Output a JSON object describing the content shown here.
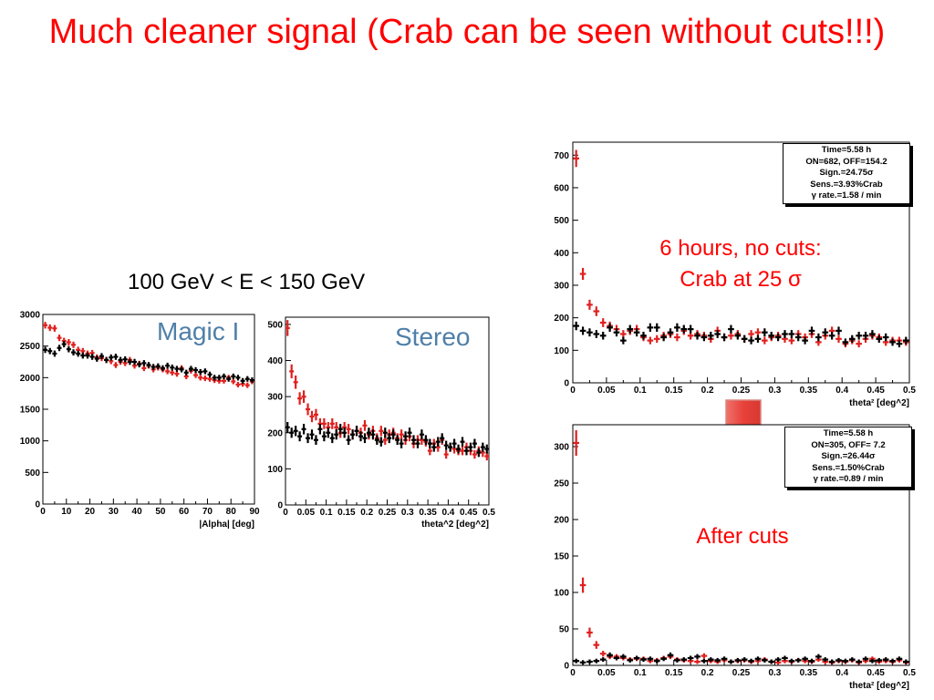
{
  "slide_title": "Much cleaner signal (Crab can be seen without cuts!!!)",
  "energy_label": "100 GeV < E < 150 GeV",
  "notes": {
    "nocuts_line1": "6 hours, no cuts:",
    "nocuts_line2": "Crab at 25 σ",
    "after_cuts": "After cuts"
  },
  "colors": {
    "on": "#e0201e",
    "off": "#000000",
    "title": "#ff0000",
    "label": "#4f7fa8",
    "arrow": "#e8413a"
  },
  "chart_data": [
    {
      "id": "alpha",
      "type": "scatter",
      "panel_label": "Magic I",
      "xlabel": "|Alpha| [deg]",
      "xlim": [
        0,
        90
      ],
      "ylim": [
        0,
        3000
      ],
      "xticks": [
        0,
        10,
        20,
        30,
        40,
        50,
        60,
        70,
        80,
        90
      ],
      "xtick_labels": [
        "0",
        "10",
        "20",
        "30",
        "40",
        "50",
        "60",
        "70",
        "80",
        "90"
      ],
      "yticks": [
        0,
        500,
        1000,
        1500,
        2000,
        2500,
        3000
      ],
      "ytick_labels": [
        "0",
        "500",
        "1000",
        "1500",
        "2000",
        "2500",
        "3000"
      ],
      "series": [
        {
          "role": "on",
          "x": [
            1,
            3,
            5,
            7,
            9,
            11,
            13,
            15,
            17,
            19,
            21,
            23,
            25,
            27,
            29,
            31,
            33,
            35,
            37,
            39,
            41,
            43,
            45,
            47,
            49,
            51,
            53,
            55,
            57,
            59,
            61,
            63,
            65,
            67,
            69,
            71,
            73,
            75,
            77,
            79,
            81,
            83,
            85,
            87,
            89
          ],
          "values": [
            2830,
            2790,
            2780,
            2630,
            2580,
            2560,
            2520,
            2440,
            2420,
            2380,
            2390,
            2320,
            2310,
            2280,
            2260,
            2200,
            2250,
            2230,
            2280,
            2190,
            2220,
            2150,
            2190,
            2130,
            2160,
            2130,
            2100,
            2080,
            2060,
            2150,
            2020,
            2110,
            2040,
            2000,
            1990,
            1980,
            1960,
            1950,
            1950,
            2000,
            1940,
            1890,
            1900,
            1880,
            1940
          ]
        },
        {
          "role": "off",
          "x": [
            1,
            3,
            5,
            7,
            9,
            11,
            13,
            15,
            17,
            19,
            21,
            23,
            25,
            27,
            29,
            31,
            33,
            35,
            37,
            39,
            41,
            43,
            45,
            47,
            49,
            51,
            53,
            55,
            57,
            59,
            61,
            63,
            65,
            67,
            69,
            71,
            73,
            75,
            77,
            79,
            81,
            83,
            85,
            87,
            89
          ],
          "values": [
            2440,
            2420,
            2380,
            2470,
            2530,
            2450,
            2400,
            2380,
            2350,
            2350,
            2330,
            2300,
            2340,
            2280,
            2320,
            2330,
            2280,
            2290,
            2250,
            2250,
            2210,
            2230,
            2200,
            2170,
            2180,
            2150,
            2190,
            2160,
            2140,
            2130,
            2080,
            2140,
            2120,
            2090,
            2100,
            2050,
            2000,
            2000,
            2020,
            1980,
            2020,
            2000,
            1950,
            1980,
            1960
          ]
        }
      ]
    },
    {
      "id": "stereo",
      "type": "scatter",
      "panel_label": "Stereo",
      "xlabel": "theta^2 [deg^2]",
      "xlim": [
        0,
        0.5
      ],
      "ylim": [
        0,
        520
      ],
      "xticks": [
        0,
        0.05,
        0.1,
        0.15,
        0.2,
        0.25,
        0.3,
        0.35,
        0.4,
        0.45,
        0.5
      ],
      "xtick_labels": [
        "0",
        "0.05",
        "0.1",
        "0.15",
        "0.2",
        "0.25",
        "0.3",
        "0.35",
        "0.4",
        "0.45",
        "0.5"
      ],
      "yticks": [
        0,
        100,
        200,
        300,
        400,
        500
      ],
      "ytick_labels": [
        "0",
        "100",
        "200",
        "300",
        "400",
        "500"
      ],
      "series": [
        {
          "role": "on",
          "x": [
            0.005,
            0.015,
            0.025,
            0.035,
            0.045,
            0.055,
            0.065,
            0.075,
            0.085,
            0.095,
            0.105,
            0.115,
            0.125,
            0.135,
            0.145,
            0.155,
            0.165,
            0.175,
            0.185,
            0.195,
            0.205,
            0.215,
            0.225,
            0.235,
            0.245,
            0.255,
            0.265,
            0.275,
            0.285,
            0.295,
            0.305,
            0.315,
            0.325,
            0.335,
            0.345,
            0.355,
            0.365,
            0.375,
            0.385,
            0.395,
            0.405,
            0.415,
            0.425,
            0.435,
            0.445,
            0.455,
            0.465,
            0.475,
            0.485,
            0.495
          ],
          "values": [
            490,
            370,
            340,
            295,
            300,
            265,
            245,
            250,
            225,
            225,
            215,
            225,
            215,
            200,
            215,
            210,
            195,
            205,
            200,
            220,
            195,
            205,
            185,
            205,
            180,
            195,
            200,
            185,
            195,
            180,
            190,
            170,
            180,
            180,
            175,
            150,
            170,
            160,
            180,
            140,
            160,
            155,
            150,
            150,
            160,
            150,
            140,
            150,
            145,
            135
          ]
        },
        {
          "role": "off",
          "x": [
            0.005,
            0.015,
            0.025,
            0.035,
            0.045,
            0.055,
            0.065,
            0.075,
            0.085,
            0.095,
            0.105,
            0.115,
            0.125,
            0.135,
            0.145,
            0.155,
            0.165,
            0.175,
            0.185,
            0.195,
            0.205,
            0.215,
            0.225,
            0.235,
            0.245,
            0.255,
            0.265,
            0.275,
            0.285,
            0.295,
            0.305,
            0.315,
            0.325,
            0.335,
            0.345,
            0.355,
            0.365,
            0.375,
            0.385,
            0.395,
            0.405,
            0.415,
            0.425,
            0.435,
            0.445,
            0.455,
            0.465,
            0.475,
            0.485,
            0.495
          ],
          "values": [
            215,
            200,
            205,
            190,
            210,
            185,
            195,
            180,
            210,
            190,
            200,
            185,
            195,
            210,
            200,
            180,
            195,
            205,
            190,
            185,
            200,
            195,
            180,
            175,
            200,
            185,
            195,
            180,
            170,
            190,
            200,
            180,
            170,
            195,
            180,
            170,
            160,
            175,
            185,
            165,
            160,
            170,
            155,
            175,
            150,
            160,
            170,
            145,
            160,
            155
          ]
        }
      ]
    },
    {
      "id": "nocuts",
      "type": "scatter",
      "xlabel": "theta² [deg^2]",
      "xlim": [
        0,
        0.5
      ],
      "ylim": [
        0,
        740
      ],
      "xticks": [
        0,
        0.05,
        0.1,
        0.15,
        0.2,
        0.25,
        0.3,
        0.35,
        0.4,
        0.45,
        0.5
      ],
      "xtick_labels": [
        "0",
        "0.05",
        "0.1",
        "0.15",
        "0.2",
        "0.25",
        "0.3",
        "0.35",
        "0.4",
        "0.45",
        "0.5"
      ],
      "yticks": [
        0,
        100,
        200,
        300,
        400,
        500,
        600,
        700
      ],
      "ytick_labels": [
        "0",
        "100",
        "200",
        "300",
        "400",
        "500",
        "600",
        "700"
      ],
      "stats_lines": [
        "Time=5.58 h",
        "ON=682, OFF=154.2",
        "Sign.=24.75σ",
        "Sens.=3.93%Crab",
        "γ rate.=1.58 / min"
      ],
      "series": [
        {
          "role": "on",
          "x": [
            0.005,
            0.015,
            0.025,
            0.035,
            0.045,
            0.055,
            0.065,
            0.075,
            0.085,
            0.095,
            0.105,
            0.115,
            0.125,
            0.135,
            0.145,
            0.155,
            0.165,
            0.175,
            0.185,
            0.195,
            0.205,
            0.215,
            0.225,
            0.235,
            0.245,
            0.255,
            0.265,
            0.275,
            0.285,
            0.295,
            0.305,
            0.315,
            0.325,
            0.335,
            0.345,
            0.355,
            0.365,
            0.375,
            0.385,
            0.395,
            0.405,
            0.415,
            0.425,
            0.435,
            0.445,
            0.455,
            0.465,
            0.475,
            0.485,
            0.495
          ],
          "values": [
            690,
            335,
            240,
            220,
            185,
            175,
            165,
            150,
            160,
            165,
            140,
            130,
            135,
            145,
            150,
            140,
            160,
            145,
            150,
            145,
            135,
            160,
            140,
            145,
            150,
            135,
            150,
            155,
            130,
            140,
            145,
            135,
            130,
            150,
            140,
            150,
            125,
            145,
            160,
            135,
            120,
            130,
            120,
            135,
            145,
            140,
            125,
            130,
            130,
            125
          ]
        },
        {
          "role": "off",
          "x": [
            0.005,
            0.015,
            0.025,
            0.035,
            0.045,
            0.055,
            0.065,
            0.075,
            0.085,
            0.095,
            0.105,
            0.115,
            0.125,
            0.135,
            0.145,
            0.155,
            0.165,
            0.175,
            0.185,
            0.195,
            0.205,
            0.215,
            0.225,
            0.235,
            0.245,
            0.255,
            0.265,
            0.275,
            0.285,
            0.295,
            0.305,
            0.315,
            0.325,
            0.335,
            0.345,
            0.355,
            0.365,
            0.375,
            0.385,
            0.395,
            0.405,
            0.415,
            0.425,
            0.435,
            0.445,
            0.455,
            0.465,
            0.475,
            0.485,
            0.495
          ],
          "values": [
            175,
            160,
            155,
            150,
            145,
            170,
            155,
            130,
            165,
            155,
            145,
            170,
            170,
            140,
            155,
            170,
            165,
            165,
            145,
            140,
            145,
            150,
            140,
            165,
            145,
            135,
            130,
            135,
            155,
            145,
            140,
            150,
            150,
            140,
            130,
            160,
            140,
            155,
            145,
            160,
            125,
            135,
            145,
            145,
            150,
            135,
            140,
            125,
            120,
            130
          ]
        }
      ]
    },
    {
      "id": "aftercuts",
      "type": "scatter",
      "xlabel": "theta² [deg^2]",
      "xlim": [
        0,
        0.5
      ],
      "ylim": [
        0,
        330
      ],
      "xticks": [
        0,
        0.05,
        0.1,
        0.15,
        0.2,
        0.25,
        0.3,
        0.35,
        0.4,
        0.45,
        0.5
      ],
      "xtick_labels": [
        "0",
        "0.05",
        "0.1",
        "0.15",
        "0.2",
        "0.25",
        "0.3",
        "0.35",
        "0.4",
        "0.45",
        "0.5"
      ],
      "yticks": [
        0,
        50,
        100,
        150,
        200,
        250,
        300
      ],
      "ytick_labels": [
        "0",
        "50",
        "100",
        "150",
        "200",
        "250",
        "300"
      ],
      "stats_lines": [
        "Time=5.58 h",
        "ON=305, OFF= 7.2",
        "Sign.=26.44σ",
        "Sens.=1.50%Crab",
        "γ rate.=0.89 / min"
      ],
      "series": [
        {
          "role": "on",
          "x": [
            0.005,
            0.015,
            0.025,
            0.035,
            0.045,
            0.055,
            0.065,
            0.075,
            0.085,
            0.095,
            0.105,
            0.115,
            0.125,
            0.135,
            0.145,
            0.155,
            0.165,
            0.175,
            0.185,
            0.195,
            0.205,
            0.215,
            0.225,
            0.235,
            0.245,
            0.255,
            0.265,
            0.275,
            0.285,
            0.295,
            0.305,
            0.315,
            0.325,
            0.335,
            0.345,
            0.355,
            0.365,
            0.375,
            0.385,
            0.395,
            0.405,
            0.415,
            0.425,
            0.435,
            0.445,
            0.455,
            0.465,
            0.475,
            0.485,
            0.495
          ],
          "values": [
            305,
            110,
            45,
            28,
            16,
            12,
            12,
            10,
            8,
            9,
            9,
            6,
            7,
            10,
            12,
            8,
            7,
            6,
            5,
            13,
            6,
            5,
            7,
            5,
            6,
            7,
            5,
            6,
            8,
            5,
            4,
            6,
            5,
            7,
            6,
            5,
            8,
            5,
            4,
            6,
            5,
            7,
            4,
            6,
            9,
            5,
            6,
            5,
            7,
            4
          ]
        },
        {
          "role": "off",
          "x": [
            0.005,
            0.015,
            0.025,
            0.035,
            0.045,
            0.055,
            0.065,
            0.075,
            0.085,
            0.095,
            0.105,
            0.115,
            0.125,
            0.135,
            0.145,
            0.155,
            0.165,
            0.175,
            0.185,
            0.195,
            0.205,
            0.215,
            0.225,
            0.235,
            0.245,
            0.255,
            0.265,
            0.275,
            0.285,
            0.295,
            0.305,
            0.315,
            0.325,
            0.335,
            0.345,
            0.355,
            0.365,
            0.375,
            0.385,
            0.395,
            0.405,
            0.415,
            0.425,
            0.435,
            0.445,
            0.455,
            0.465,
            0.475,
            0.485,
            0.495
          ],
          "values": [
            6,
            4,
            5,
            6,
            8,
            14,
            10,
            12,
            7,
            10,
            8,
            9,
            6,
            9,
            14,
            7,
            8,
            10,
            12,
            6,
            8,
            7,
            9,
            5,
            7,
            8,
            6,
            9,
            7,
            5,
            8,
            10,
            6,
            7,
            9,
            6,
            12,
            8,
            5,
            7,
            6,
            8,
            5,
            9,
            6,
            7,
            8,
            6,
            9,
            5
          ]
        }
      ]
    }
  ]
}
